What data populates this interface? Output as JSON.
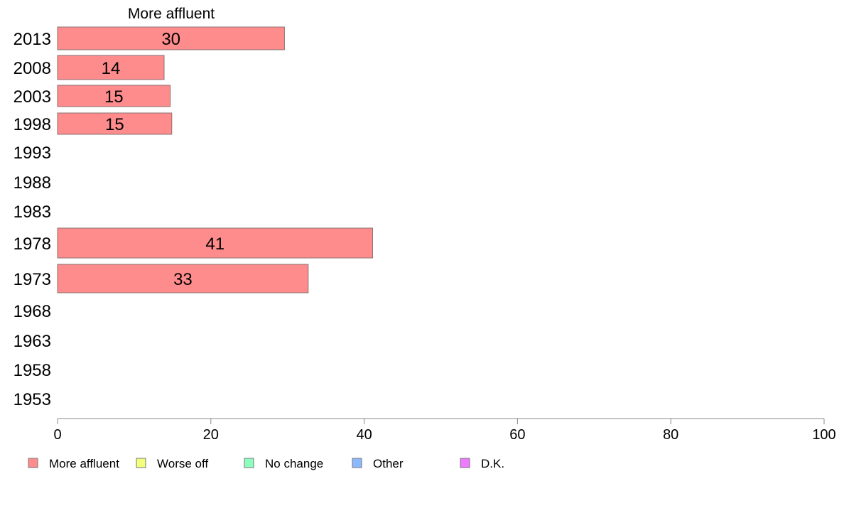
{
  "chart_data": {
    "type": "bar",
    "orientation": "horizontal",
    "title": "More affluent",
    "categories": [
      "2013",
      "2008",
      "2003",
      "1998",
      "1993",
      "1988",
      "1983",
      "1978",
      "1973",
      "1968",
      "1963",
      "1958",
      "1953"
    ],
    "series": [
      {
        "name": "More affluent",
        "color": "#ff8c8c",
        "values": [
          29.6,
          13.9,
          14.7,
          14.9,
          null,
          null,
          null,
          41.1,
          32.7,
          null,
          null,
          null,
          null
        ],
        "labels": [
          "30",
          "14",
          "15",
          "15",
          "",
          "",
          "",
          "41",
          "33",
          "",
          "",
          "",
          ""
        ]
      }
    ],
    "xlim": [
      0,
      100
    ],
    "xticks": [
      0,
      20,
      40,
      60,
      80,
      100
    ],
    "grid": false,
    "legend_position": "bottom-left",
    "legend": [
      {
        "label": "More affluent",
        "color": "#ff8c8c"
      },
      {
        "label": "Worse off",
        "color": "#f2ff7a"
      },
      {
        "label": "No change",
        "color": "#8cffbf"
      },
      {
        "label": "Other",
        "color": "#8cb8ff"
      },
      {
        "label": "D.K.",
        "color": "#ee7aff"
      }
    ]
  }
}
